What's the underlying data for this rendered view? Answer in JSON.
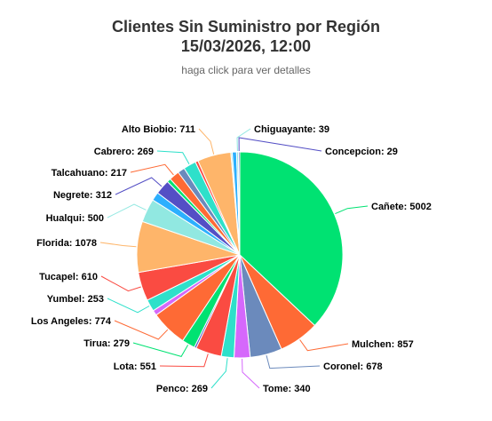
{
  "title": "Clientes Sin Suministro por Región\n15/03/2026, 12:00",
  "subtitle": "haga click para ver detalles",
  "chart_data": {
    "type": "pie",
    "title": "Clientes Sin Suministro por Región 15/03/2026, 12:00",
    "subtitle": "haga click para ver detalles",
    "slices": [
      {
        "name": "Cañete",
        "value": 5002,
        "color": "#00e272"
      },
      {
        "name": "Mulchen",
        "value": 857,
        "color": "#fe6a35"
      },
      {
        "name": "Coronel",
        "value": 678,
        "color": "#6b8abc"
      },
      {
        "name": "Tome",
        "value": 340,
        "color": "#d568fb"
      },
      {
        "name": "Penco",
        "value": 269,
        "color": "#2ee0ca"
      },
      {
        "name": "Lota",
        "value": 551,
        "color": "#fa4b42"
      },
      {
        "name": "",
        "value": 43,
        "color": "#544fc5"
      },
      {
        "name": "Tirua",
        "value": 279,
        "color": "#00e272"
      },
      {
        "name": "Los Angeles",
        "value": 774,
        "color": "#fe6a35"
      },
      {
        "name": "",
        "value": 110,
        "color": "#d568fb"
      },
      {
        "name": "Yumbel",
        "value": 253,
        "color": "#2ee0ca"
      },
      {
        "name": "Tucapel",
        "value": 610,
        "color": "#fa4b42"
      },
      {
        "name": "Florida",
        "value": 1078,
        "color": "#feb56a"
      },
      {
        "name": "Hualqui",
        "value": 500,
        "color": "#91e8e1"
      },
      {
        "name": "",
        "value": 180,
        "color": "#2caffe"
      },
      {
        "name": "Negrete",
        "value": 312,
        "color": "#544fc5"
      },
      {
        "name": "",
        "value": 80,
        "color": "#00e272"
      },
      {
        "name": "Talcahuano",
        "value": 217,
        "color": "#fe6a35"
      },
      {
        "name": "",
        "value": 150,
        "color": "#6b8abc"
      },
      {
        "name": "Cabrero",
        "value": 269,
        "color": "#2ee0ca"
      },
      {
        "name": "",
        "value": 60,
        "color": "#fa4b42"
      },
      {
        "name": "Alto Biobio",
        "value": 711,
        "color": "#feb56a"
      },
      {
        "name": "",
        "value": 30,
        "color": "#91e8e1"
      },
      {
        "name": "",
        "value": 90,
        "color": "#2caffe"
      },
      {
        "name": "Chiguayante",
        "value": 39,
        "color": "#91e8e1"
      },
      {
        "name": "Concepcion",
        "value": 29,
        "color": "#544fc5"
      }
    ],
    "legend": false
  }
}
